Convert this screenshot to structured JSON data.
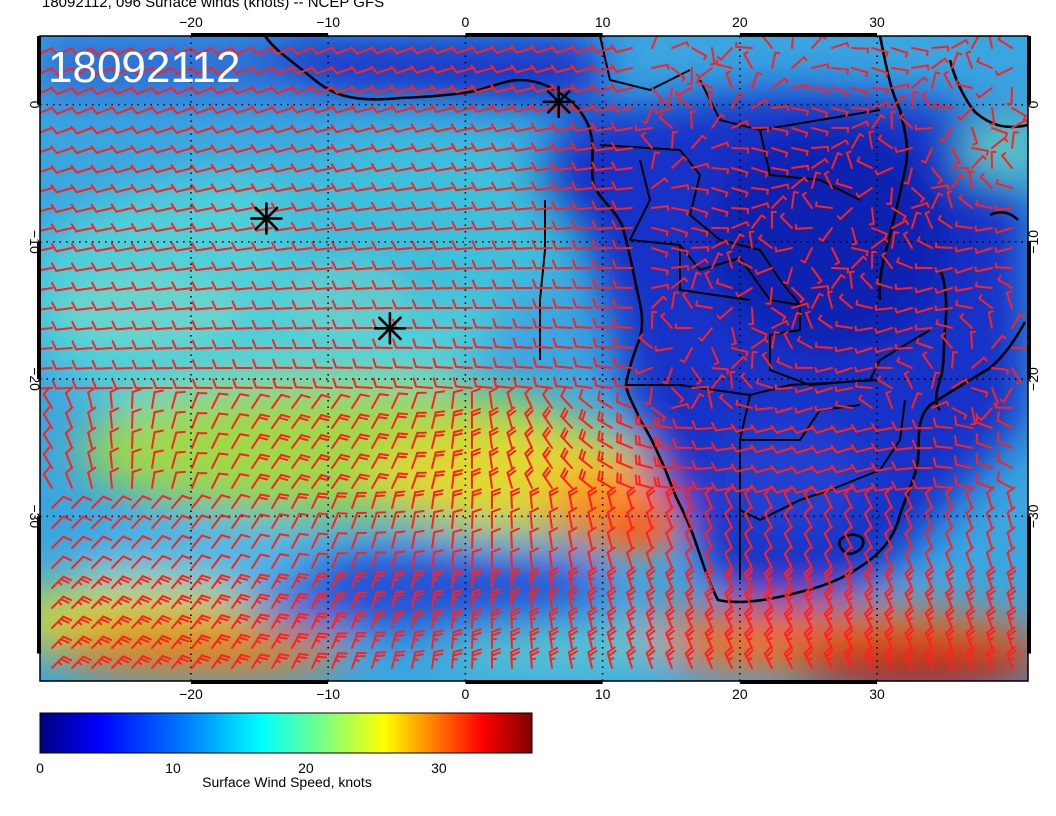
{
  "header": {
    "title": "18092112, 096 Surface winds (knots) -- NCEP GFS"
  },
  "stamp": "18092112",
  "axes": {
    "lon_range": [
      -31,
      41
    ],
    "lat_range": [
      -42,
      5
    ],
    "lon_ticks": [
      {
        "value": -20,
        "label": "−20"
      },
      {
        "value": -10,
        "label": "−10"
      },
      {
        "value": 0,
        "label": "0"
      },
      {
        "value": 10,
        "label": "10"
      },
      {
        "value": 20,
        "label": "20"
      },
      {
        "value": 30,
        "label": "30"
      }
    ],
    "lat_ticks": [
      {
        "value": 0,
        "label": "0"
      },
      {
        "value": -10,
        "label": "−10"
      },
      {
        "value": -20,
        "label": "−20"
      },
      {
        "value": -30,
        "label": "−30"
      }
    ]
  },
  "markers": [
    {
      "name": "storm-marker-1",
      "lon": -14.5,
      "lat": -8.3
    },
    {
      "name": "storm-marker-2",
      "lon": -5.5,
      "lat": -16.3
    },
    {
      "name": "storm-marker-3",
      "lon": 6.8,
      "lat": 0.2
    }
  ],
  "colorbar": {
    "label": "Surface Wind Speed, knots",
    "min": 0,
    "max": 37,
    "ticks": [
      {
        "value": 0,
        "label": "0"
      },
      {
        "value": 10,
        "label": "10"
      },
      {
        "value": 20,
        "label": "20"
      },
      {
        "value": 30,
        "label": "30"
      }
    ],
    "colors": [
      "#00007f",
      "#0000ff",
      "#007fff",
      "#00ffff",
      "#7fff7f",
      "#ffff00",
      "#ff7f00",
      "#ff0000",
      "#7f0000"
    ]
  },
  "colors": {
    "barb": "#ff2020",
    "coast": "#000000",
    "stamp_text": "#ffffff"
  }
}
